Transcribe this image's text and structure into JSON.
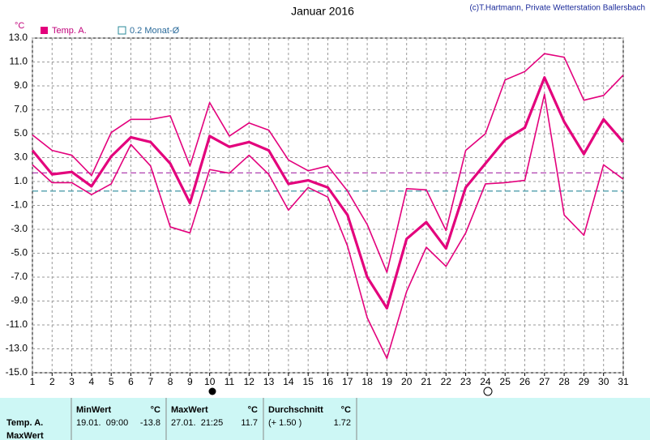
{
  "chart_data": {
    "type": "line",
    "title": "Januar 2016",
    "credit": "(c)T.Hartmann, Private Wetterstation Ballersbach",
    "y_unit": "°C",
    "x": [
      1,
      2,
      3,
      4,
      5,
      6,
      7,
      8,
      9,
      10,
      11,
      12,
      13,
      14,
      15,
      16,
      17,
      18,
      19,
      20,
      21,
      22,
      23,
      24,
      25,
      26,
      27,
      28,
      29,
      30,
      31
    ],
    "xlim": [
      1,
      31
    ],
    "xticks": [
      1,
      2,
      3,
      4,
      5,
      6,
      7,
      8,
      9,
      10,
      11,
      12,
      13,
      14,
      15,
      16,
      17,
      18,
      19,
      20,
      21,
      22,
      23,
      24,
      25,
      26,
      27,
      28,
      29,
      30,
      31
    ],
    "ylim": [
      -15,
      13
    ],
    "yticks": [
      {
        "value": 13,
        "label": "13.0"
      },
      {
        "value": 11,
        "label": "11.0"
      },
      {
        "value": 9,
        "label": "9.0"
      },
      {
        "value": 7,
        "label": "7.0"
      },
      {
        "value": 5,
        "label": "5.0"
      },
      {
        "value": 3,
        "label": "3.0"
      },
      {
        "value": 1,
        "label": "1.0"
      },
      {
        "value": -1,
        "label": "-1.0"
      },
      {
        "value": -3,
        "label": "-3.0"
      },
      {
        "value": -5,
        "label": "-5.0"
      },
      {
        "value": -7,
        "label": "-7.0"
      },
      {
        "value": -9,
        "label": "-9.0"
      },
      {
        "value": -11,
        "label": "-11.0"
      },
      {
        "value": -13,
        "label": "-13.0"
      },
      {
        "value": -15,
        "label": "-15.0"
      }
    ],
    "grid": true,
    "series": [
      {
        "name": "Temp. A.",
        "color": "#e3007c",
        "values": [
          3.6,
          1.6,
          1.8,
          0.6,
          3.1,
          4.7,
          4.3,
          2.5,
          -0.8,
          4.8,
          3.9,
          4.3,
          3.6,
          0.8,
          1.1,
          0.5,
          -1.8,
          -7.0,
          -9.6,
          -3.8,
          -2.4,
          -4.6,
          0.5,
          2.5,
          4.5,
          5.5,
          9.7,
          6.0,
          3.3,
          6.2,
          4.3
        ],
        "max_values": [
          4.9,
          3.6,
          3.2,
          1.5,
          5.1,
          6.2,
          6.2,
          6.5,
          2.3,
          7.6,
          4.8,
          5.9,
          5.3,
          2.8,
          1.9,
          2.3,
          0.2,
          -2.6,
          -6.6,
          0.4,
          0.3,
          -3.1,
          3.6,
          5.0,
          9.5,
          10.2,
          11.7,
          11.4,
          7.8,
          8.2,
          9.9
        ],
        "min_values": [
          2.4,
          0.9,
          0.9,
          -0.1,
          0.8,
          4.1,
          2.3,
          -2.8,
          -3.3,
          2.0,
          1.7,
          3.2,
          1.6,
          -1.4,
          0.5,
          -0.3,
          -4.4,
          -10.4,
          -13.8,
          -8.2,
          -4.5,
          -6.1,
          -3.3,
          0.8,
          0.9,
          1.1,
          8.3,
          -1.8,
          -3.5,
          2.4,
          1.2
        ]
      }
    ],
    "reference_lines": [
      {
        "value": 1.72,
        "color": "#b040b0"
      },
      {
        "name": "0.2 Monat-Ø",
        "value": 0.2,
        "color": "#2a8a9a"
      }
    ]
  },
  "stats": {
    "row_labels": [
      "Temp. A.",
      "MaxWert"
    ],
    "columns": [
      {
        "header": "MinWert",
        "unit": "°C",
        "when": "19.01.  09:00",
        "value": "-13.8"
      },
      {
        "header": "MaxWert",
        "unit": "°C",
        "when": "27.01.  21:25",
        "value": "11.7"
      },
      {
        "header": "Durchschnitt",
        "unit": "°C",
        "when": "(+ 1.50 )",
        "value": "1.72"
      }
    ]
  }
}
